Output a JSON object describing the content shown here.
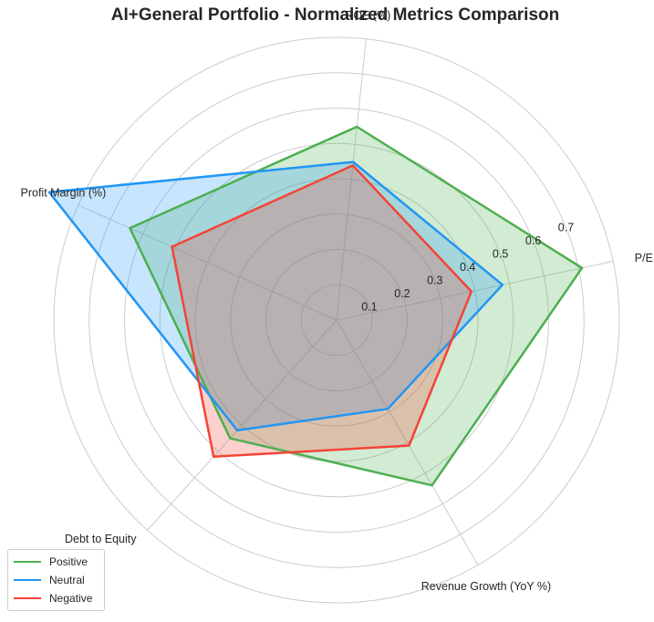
{
  "chart_data": {
    "type": "radar",
    "title": "AI+General Portfolio - Normalized Metrics Comparison",
    "axes": [
      "P/E",
      "ROE (%)",
      "Profit Margin (%)",
      "Debt to Equity",
      "Revenue Growth (YoY %)"
    ],
    "rlim": [
      0,
      0.8
    ],
    "r_ticks": [
      "0.1",
      "0.2",
      "0.3",
      "0.4",
      "0.5",
      "0.6",
      "0.7"
    ],
    "r_tick_values": [
      0.1,
      0.2,
      0.3,
      0.4,
      0.5,
      0.6,
      0.7
    ],
    "grid": true,
    "legend_position": "lower-left",
    "series": [
      {
        "name": "Positive",
        "color": "#4caf50",
        "values": [
          0.71,
          0.55,
          0.64,
          0.45,
          0.54
        ]
      },
      {
        "name": "Neutral",
        "color": "#2196f3",
        "values": [
          0.48,
          0.45,
          0.89,
          0.42,
          0.29
        ]
      },
      {
        "name": "Negative",
        "color": "#f44336",
        "values": [
          0.39,
          0.44,
          0.51,
          0.52,
          0.41
        ]
      }
    ]
  }
}
